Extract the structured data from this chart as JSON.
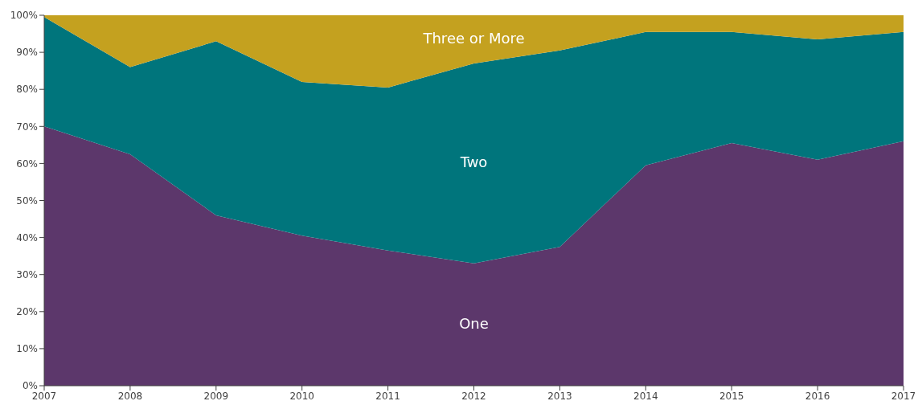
{
  "chart_data": {
    "type": "area",
    "stacked": true,
    "legend": false,
    "grid": false,
    "x": [
      2007,
      2008,
      2009,
      2010,
      2011,
      2012,
      2013,
      2014,
      2015,
      2016,
      2017
    ],
    "xlim": [
      2007,
      2017
    ],
    "xticks": [
      2007,
      2008,
      2009,
      2010,
      2011,
      2012,
      2013,
      2014,
      2015,
      2016,
      2017
    ],
    "ylim": [
      0,
      100
    ],
    "yticks": [
      {
        "value": 0,
        "label": "0%"
      },
      {
        "value": 10,
        "label": "10%"
      },
      {
        "value": 20,
        "label": "20%"
      },
      {
        "value": 30,
        "label": "30%"
      },
      {
        "value": 40,
        "label": "40%"
      },
      {
        "value": 50,
        "label": "50%"
      },
      {
        "value": 60,
        "label": "60%"
      },
      {
        "value": 70,
        "label": "70%"
      },
      {
        "value": 80,
        "label": "80%"
      },
      {
        "value": 90,
        "label": "90%"
      },
      {
        "value": 100,
        "label": "100%"
      }
    ],
    "series": [
      {
        "name": "One",
        "color": "#5c376b",
        "values": [
          70,
          62.5,
          46,
          40.5,
          36.5,
          33,
          37.5,
          59.5,
          65.5,
          61,
          66
        ]
      },
      {
        "name": "Two",
        "color": "#00757c",
        "values": [
          29.5,
          23.5,
          47,
          41.5,
          44,
          54,
          53,
          36,
          30,
          32.5,
          29.5
        ]
      },
      {
        "name": "Three or More",
        "color": "#c4a11f",
        "values": [
          0.5,
          14,
          7,
          18,
          19.5,
          13,
          9.5,
          4.5,
          4.5,
          6.5,
          4.5
        ]
      }
    ]
  }
}
